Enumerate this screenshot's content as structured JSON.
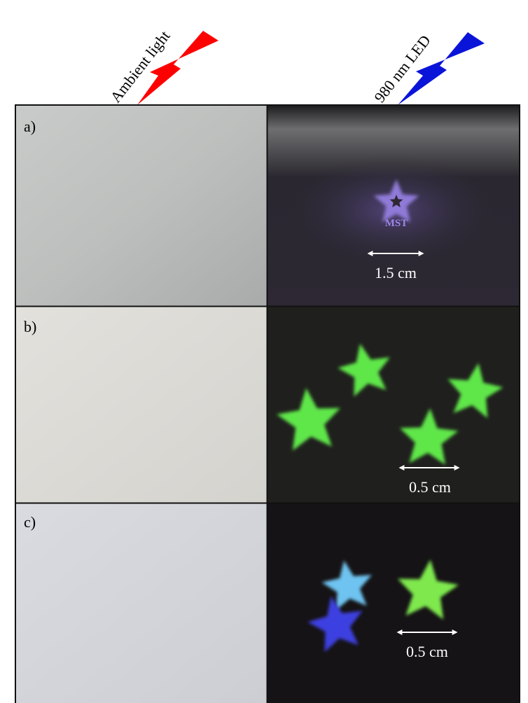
{
  "header": {
    "left_label": "Ambient light",
    "right_label": "980 nm LED"
  },
  "panels": [
    {
      "label": "a)",
      "logo": "MST",
      "scale": "1.5 cm"
    },
    {
      "label": "b)",
      "scale": "0.5 cm"
    },
    {
      "label": "c)",
      "scale": "0.5 cm"
    }
  ]
}
